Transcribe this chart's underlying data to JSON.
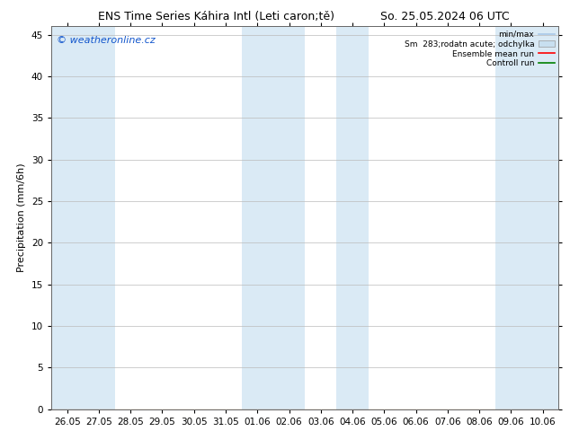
{
  "title_left": "ENS Time Series Káhira Intl (Leti caron;tě)",
  "title_right": "So. 25.05.2024 06 UTC",
  "ylabel": "Precipitation (mm/6h)",
  "ylim": [
    0,
    46
  ],
  "yticks": [
    0,
    5,
    10,
    15,
    20,
    25,
    30,
    35,
    40,
    45
  ],
  "xtick_labels": [
    "26.05",
    "27.05",
    "28.05",
    "29.05",
    "30.05",
    "31.05",
    "01.06",
    "02.06",
    "03.06",
    "04.06",
    "05.06",
    "06.06",
    "07.06",
    "08.06",
    "09.06",
    "10.06"
  ],
  "shaded_columns": [
    0,
    1,
    6,
    7,
    9,
    14,
    15
  ],
  "shade_color": "#daeaf5",
  "bg_color": "#ffffff",
  "plot_bg_color": "#ffffff",
  "watermark": "© weatheronline.cz",
  "legend_label_minmax": "min/max",
  "legend_label_sm": "Sm  283;rodatn acute; odchylka",
  "legend_label_ens": "Ensemble mean run",
  "legend_label_ctrl": "Controll run",
  "legend_color_minmax": "#a8c8e8",
  "legend_color_sm": "#c8dff0",
  "legend_color_ens": "#ff0000",
  "legend_color_ctrl": "#008000",
  "grid_color": "#bbbbbb",
  "title_fontsize": 9,
  "axis_label_fontsize": 8,
  "tick_fontsize": 7.5,
  "watermark_color": "#1155cc",
  "watermark_fontsize": 8
}
